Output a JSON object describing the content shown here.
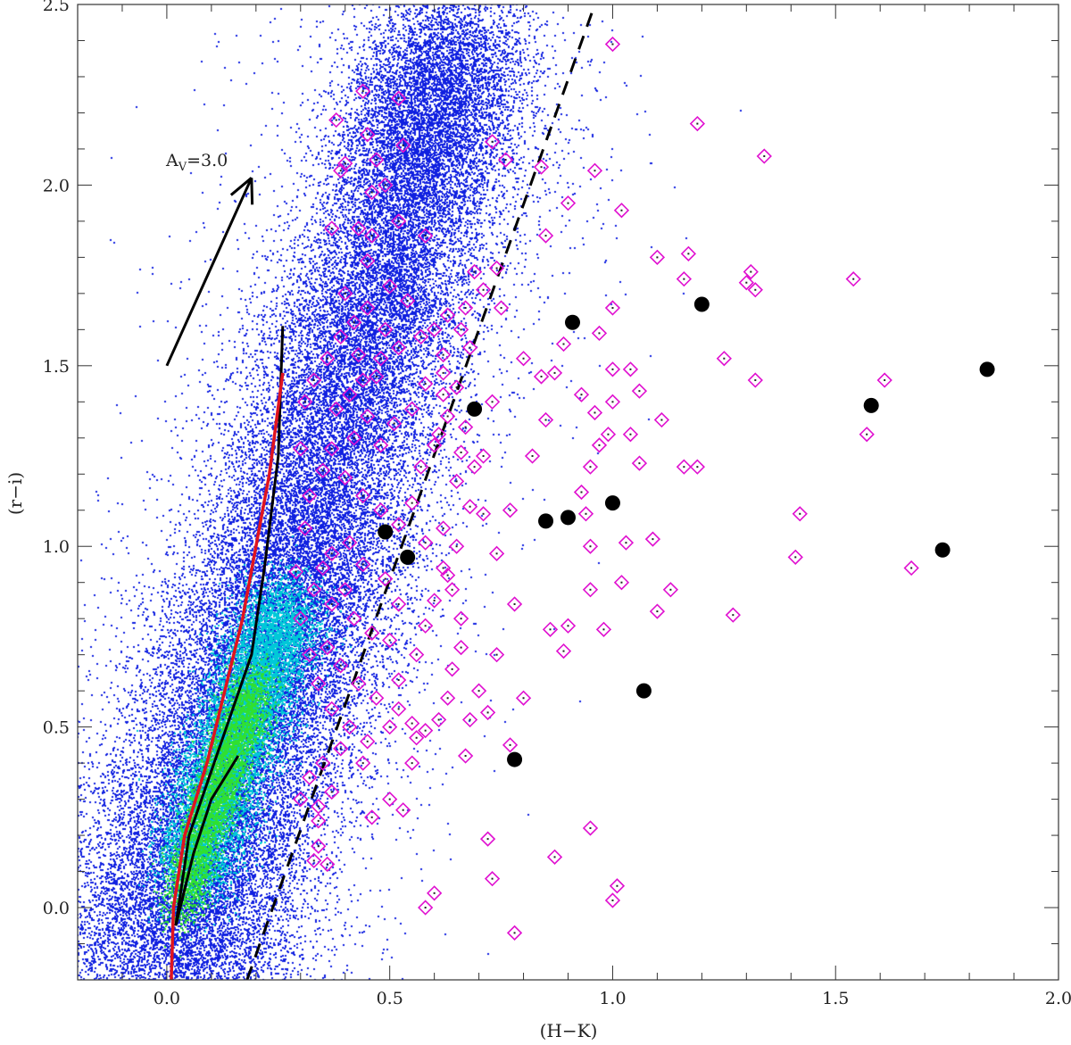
{
  "chart_data": {
    "type": "scatter",
    "xlabel": "(H−K)",
    "ylabel": "(r−i)",
    "xlim": [
      -0.2,
      2.0
    ],
    "ylim": [
      -0.2,
      2.5
    ],
    "xticks": [
      0.0,
      0.5,
      1.0,
      1.5,
      2.0
    ],
    "xtick_labels": [
      "0.0",
      "0.5",
      "1.0",
      "1.5",
      "2.0"
    ],
    "yticks": [
      0.0,
      0.5,
      1.0,
      1.5,
      2.0,
      2.5
    ],
    "ytick_labels": [
      "0.0",
      "0.5",
      "1.0",
      "1.5",
      "2.0",
      "2.5"
    ],
    "grid": false,
    "colors": {
      "density_low": "#1020e0",
      "density_mid": "#00c8d8",
      "density_high": "#30e030",
      "diamonds": "#e010d0",
      "filled_circles": "#000000",
      "red_track": "#e0141e",
      "black_track": "#000000"
    },
    "reddening_vector": {
      "label_main": "A",
      "label_sub": "V",
      "label_value": "=3.0",
      "from": [
        0.0,
        1.5
      ],
      "to": [
        0.19,
        2.02
      ]
    },
    "dividing_line": {
      "style": "dashed",
      "from": [
        0.18,
        -0.2
      ],
      "to": [
        0.96,
        2.5
      ]
    },
    "tracks": {
      "red": [
        [
          0.01,
          -0.2
        ],
        [
          0.015,
          0.0
        ],
        [
          0.04,
          0.2
        ],
        [
          0.09,
          0.4
        ],
        [
          0.13,
          0.6
        ],
        [
          0.17,
          0.8
        ],
        [
          0.2,
          1.0
        ],
        [
          0.23,
          1.2
        ],
        [
          0.26,
          1.48
        ]
      ],
      "black_1": [
        [
          0.02,
          -0.05
        ],
        [
          0.06,
          0.15
        ],
        [
          0.1,
          0.3
        ],
        [
          0.16,
          0.42
        ]
      ],
      "black_2": [
        [
          0.02,
          -0.05
        ],
        [
          0.05,
          0.2
        ],
        [
          0.12,
          0.45
        ],
        [
          0.19,
          0.7
        ],
        [
          0.22,
          0.95
        ],
        [
          0.25,
          1.25
        ],
        [
          0.26,
          1.61
        ]
      ]
    },
    "density_ridges": [
      {
        "name": "",
        "points": [
          [
            0.0,
            -0.2
          ],
          [
            0.08,
            0.2
          ],
          [
            0.2,
            0.6
          ],
          [
            0.3,
            1.0
          ],
          [
            0.42,
            1.5
          ],
          [
            0.55,
            2.0
          ],
          [
            0.65,
            2.45
          ]
        ]
      },
      {
        "name": "",
        "points": [
          [
            0.0,
            -0.1
          ],
          [
            0.12,
            0.35
          ],
          [
            0.22,
            0.7
          ],
          [
            0.35,
            1.05
          ],
          [
            0.45,
            1.4
          ]
        ]
      }
    ],
    "filled_circles": [
      {
        "x": 0.49,
        "y": 1.04
      },
      {
        "x": 0.54,
        "y": 0.97
      },
      {
        "x": 0.69,
        "y": 1.38
      },
      {
        "x": 0.78,
        "y": 0.41
      },
      {
        "x": 0.85,
        "y": 1.07
      },
      {
        "x": 0.9,
        "y": 1.08
      },
      {
        "x": 0.91,
        "y": 1.62
      },
      {
        "x": 1.0,
        "y": 1.12
      },
      {
        "x": 1.07,
        "y": 0.6
      },
      {
        "x": 1.2,
        "y": 1.67
      },
      {
        "x": 1.58,
        "y": 1.39
      },
      {
        "x": 1.74,
        "y": 0.99
      },
      {
        "x": 1.84,
        "y": 1.49
      }
    ],
    "diamonds_outer": [
      [
        1.0,
        2.39
      ],
      [
        1.19,
        2.17
      ],
      [
        1.34,
        2.08
      ],
      [
        0.96,
        2.04
      ],
      [
        1.02,
        1.93
      ],
      [
        0.85,
        1.86
      ],
      [
        1.1,
        1.8
      ],
      [
        1.17,
        1.81
      ],
      [
        1.31,
        1.76
      ],
      [
        1.54,
        1.74
      ],
      [
        1.3,
        1.73
      ],
      [
        1.16,
        1.74
      ],
      [
        1.32,
        1.71
      ],
      [
        1.25,
        1.52
      ],
      [
        1.32,
        1.46
      ],
      [
        1.61,
        1.46
      ],
      [
        1.57,
        1.31
      ],
      [
        1.16,
        1.22
      ],
      [
        1.19,
        1.22
      ],
      [
        1.11,
        1.35
      ],
      [
        1.42,
        1.09
      ],
      [
        1.41,
        0.97
      ],
      [
        1.67,
        0.94
      ],
      [
        1.27,
        0.81
      ],
      [
        1.13,
        0.88
      ],
      [
        1.1,
        0.82
      ],
      [
        1.09,
        1.02
      ],
      [
        1.03,
        1.01
      ],
      [
        1.02,
        0.9
      ],
      [
        1.01,
        0.06
      ],
      [
        1.0,
        0.02
      ],
      [
        0.95,
        0.22
      ],
      [
        0.87,
        0.14
      ],
      [
        0.78,
        -0.07
      ],
      [
        0.73,
        0.08
      ],
      [
        0.72,
        0.19
      ],
      [
        0.6,
        0.04
      ],
      [
        0.58,
        0.0
      ],
      [
        0.53,
        0.27
      ],
      [
        0.5,
        0.3
      ],
      [
        0.36,
        0.12
      ],
      [
        0.34,
        0.17
      ],
      [
        0.33,
        0.13
      ],
      [
        0.34,
        0.24
      ],
      [
        0.37,
        0.32
      ],
      [
        0.46,
        0.25
      ],
      [
        0.44,
        0.4
      ],
      [
        0.5,
        0.5
      ],
      [
        0.55,
        0.4
      ],
      [
        0.56,
        0.47
      ],
      [
        0.58,
        0.49
      ],
      [
        0.67,
        0.42
      ],
      [
        0.68,
        0.52
      ],
      [
        0.72,
        0.54
      ],
      [
        0.77,
        0.45
      ],
      [
        0.8,
        0.58
      ],
      [
        0.89,
        0.71
      ],
      [
        0.86,
        0.77
      ],
      [
        0.9,
        0.78
      ],
      [
        0.95,
        0.88
      ],
      [
        0.98,
        0.77
      ],
      [
        0.95,
        1.0
      ],
      [
        0.94,
        1.09
      ],
      [
        0.93,
        1.15
      ],
      [
        0.95,
        1.22
      ],
      [
        0.97,
        1.28
      ],
      [
        0.99,
        1.31
      ],
      [
        1.04,
        1.31
      ],
      [
        1.06,
        1.23
      ],
      [
        1.04,
        1.49
      ],
      [
        1.06,
        1.43
      ],
      [
        1.0,
        1.49
      ],
      [
        1.0,
        1.4
      ],
      [
        0.96,
        1.37
      ],
      [
        0.93,
        1.42
      ],
      [
        0.89,
        1.56
      ],
      [
        0.97,
        1.59
      ],
      [
        1.0,
        1.66
      ],
      [
        0.87,
        1.48
      ],
      [
        0.84,
        1.47
      ],
      [
        0.8,
        1.52
      ],
      [
        0.85,
        1.35
      ],
      [
        0.82,
        1.25
      ],
      [
        0.77,
        1.1
      ],
      [
        0.71,
        1.25
      ],
      [
        0.73,
        1.4
      ],
      [
        0.69,
        1.22
      ],
      [
        0.65,
        1.18
      ],
      [
        0.62,
        1.05
      ],
      [
        0.63,
        0.92
      ],
      [
        0.66,
        0.72
      ],
      [
        0.7,
        0.6
      ],
      [
        0.74,
        0.7
      ],
      [
        0.78,
        0.84
      ],
      [
        0.74,
        0.98
      ],
      [
        0.71,
        1.09
      ],
      [
        0.67,
        1.33
      ],
      [
        0.62,
        1.42
      ],
      [
        0.61,
        1.31
      ],
      [
        0.75,
        1.66
      ],
      [
        0.74,
        1.77
      ],
      [
        0.71,
        1.71
      ],
      [
        0.69,
        1.76
      ],
      [
        0.67,
        1.66
      ],
      [
        0.73,
        2.12
      ],
      [
        0.76,
        2.07
      ],
      [
        0.84,
        2.05
      ],
      [
        0.9,
        1.95
      ],
      [
        0.66,
        1.6
      ],
      [
        0.62,
        1.53
      ]
    ],
    "diamonds_inner": [
      [
        0.44,
        2.26
      ],
      [
        0.38,
        2.18
      ],
      [
        0.45,
        2.14
      ],
      [
        0.52,
        2.24
      ],
      [
        0.53,
        2.11
      ],
      [
        0.47,
        2.07
      ],
      [
        0.4,
        2.06
      ],
      [
        0.49,
        2.0
      ],
      [
        0.46,
        1.98
      ],
      [
        0.39,
        2.04
      ],
      [
        0.37,
        1.88
      ],
      [
        0.43,
        1.88
      ],
      [
        0.46,
        1.86
      ],
      [
        0.52,
        1.9
      ],
      [
        0.58,
        1.86
      ],
      [
        0.45,
        1.79
      ],
      [
        0.5,
        1.72
      ],
      [
        0.4,
        1.7
      ],
      [
        0.42,
        1.62
      ],
      [
        0.45,
        1.66
      ],
      [
        0.52,
        1.55
      ],
      [
        0.48,
        1.52
      ],
      [
        0.44,
        1.46
      ],
      [
        0.41,
        1.42
      ],
      [
        0.38,
        1.38
      ],
      [
        0.45,
        1.36
      ],
      [
        0.51,
        1.34
      ],
      [
        0.48,
        1.28
      ],
      [
        0.42,
        1.3
      ],
      [
        0.37,
        1.27
      ],
      [
        0.35,
        1.21
      ],
      [
        0.4,
        1.19
      ],
      [
        0.44,
        1.14
      ],
      [
        0.48,
        1.1
      ],
      [
        0.52,
        1.06
      ],
      [
        0.41,
        1.01
      ],
      [
        0.37,
        0.98
      ],
      [
        0.35,
        0.94
      ],
      [
        0.33,
        0.88
      ],
      [
        0.37,
        0.84
      ],
      [
        0.42,
        0.8
      ],
      [
        0.46,
        0.76
      ],
      [
        0.5,
        0.74
      ],
      [
        0.52,
        0.84
      ],
      [
        0.49,
        0.91
      ],
      [
        0.44,
        0.95
      ],
      [
        0.4,
        0.88
      ],
      [
        0.36,
        0.72
      ],
      [
        0.39,
        0.67
      ],
      [
        0.43,
        0.62
      ],
      [
        0.47,
        0.58
      ],
      [
        0.52,
        0.63
      ],
      [
        0.56,
        0.7
      ],
      [
        0.58,
        0.78
      ],
      [
        0.6,
        0.85
      ],
      [
        0.62,
        0.94
      ],
      [
        0.58,
        1.01
      ],
      [
        0.55,
        1.12
      ],
      [
        0.57,
        1.22
      ],
      [
        0.6,
        1.28
      ],
      [
        0.55,
        1.38
      ],
      [
        0.58,
        1.45
      ],
      [
        0.62,
        1.48
      ],
      [
        0.57,
        1.58
      ],
      [
        0.54,
        1.68
      ],
      [
        0.49,
        1.6
      ],
      [
        0.47,
        1.47
      ],
      [
        0.43,
        1.53
      ],
      [
        0.39,
        1.58
      ],
      [
        0.36,
        1.52
      ],
      [
        0.33,
        1.46
      ],
      [
        0.31,
        1.4
      ],
      [
        0.3,
        1.27
      ],
      [
        0.32,
        1.14
      ],
      [
        0.31,
        1.05
      ],
      [
        0.29,
        0.93
      ],
      [
        0.3,
        0.8
      ],
      [
        0.32,
        0.7
      ],
      [
        0.34,
        0.62
      ],
      [
        0.37,
        0.55
      ],
      [
        0.41,
        0.5
      ],
      [
        0.45,
        0.46
      ],
      [
        0.39,
        0.44
      ],
      [
        0.35,
        0.4
      ],
      [
        0.32,
        0.36
      ],
      [
        0.3,
        0.3
      ],
      [
        0.34,
        0.28
      ],
      [
        0.52,
        0.55
      ],
      [
        0.55,
        0.51
      ],
      [
        0.61,
        0.52
      ],
      [
        0.63,
        0.58
      ],
      [
        0.64,
        0.66
      ],
      [
        0.66,
        0.8
      ],
      [
        0.64,
        0.88
      ],
      [
        0.65,
        1.0
      ],
      [
        0.68,
        1.11
      ],
      [
        0.66,
        1.26
      ],
      [
        0.63,
        1.36
      ],
      [
        0.65,
        1.44
      ],
      [
        0.68,
        1.55
      ],
      [
        0.63,
        1.64
      ],
      [
        0.6,
        1.6
      ]
    ]
  }
}
